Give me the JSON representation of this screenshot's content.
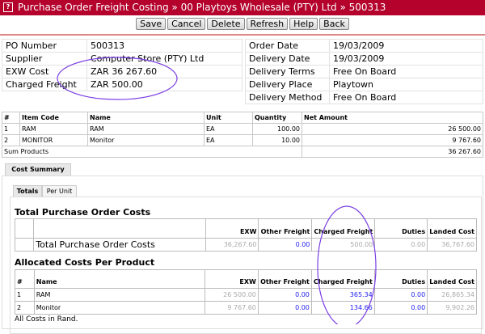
{
  "title": "Purchase Order Freight Costing » 00 Playtoys Wholesale (PTY) Ltd » 500313",
  "help_icon": "?",
  "toolbar": [
    "Save",
    "Cancel",
    "Delete",
    "Refresh",
    "Help",
    "Back"
  ],
  "info_left": [
    [
      "PO Number",
      "500313"
    ],
    [
      "Supplier",
      "Computer Store (PTY) Ltd"
    ],
    [
      "EXW Cost",
      "ZAR 36 267.60"
    ],
    [
      "Charged Freight",
      "ZAR 500.00"
    ]
  ],
  "info_right": [
    [
      "Order Date",
      "19/03/2009"
    ],
    [
      "Delivery Date",
      "19/03/2009"
    ],
    [
      "Delivery Terms",
      "Free On Board"
    ],
    [
      "Delivery Place",
      "Playtown"
    ],
    [
      "Delivery Method",
      "Free On Board"
    ]
  ],
  "items": {
    "headers": [
      "#",
      "Item Code",
      "Name",
      "Unit",
      "Quantity",
      "Net Amount"
    ],
    "rows": [
      [
        "1",
        "RAM",
        "RAM",
        "EA",
        "100.00",
        "26 500.00"
      ],
      [
        "2",
        "MONITOR",
        "Monitor",
        "EA",
        "10.00",
        "9 767.60"
      ]
    ],
    "sum_label": "Sum Products",
    "sum_value": "36 267.60"
  },
  "tabs": {
    "outer": "Cost Summary",
    "inner": [
      "Totals",
      "Per Unit"
    ]
  },
  "totals": {
    "heading": "Total Purchase Order Costs",
    "headers": [
      "EXW",
      "Other Freight",
      "Charged Freight",
      "Duties",
      "Landed Cost"
    ],
    "row": {
      "label": "Total Purchase Order Costs",
      "values": [
        "36,267.60",
        "0.00",
        "500.00",
        "0.00",
        "36,767.60"
      ]
    }
  },
  "allocated": {
    "heading": "Allocated Costs Per Product",
    "headers": [
      "#",
      "Name",
      "EXW",
      "Other Freight",
      "Charged Freight",
      "Duties",
      "Landed Cost"
    ],
    "rows": [
      [
        "1",
        "RAM",
        "26 500.00",
        "0.00",
        "365.34",
        "0.00",
        "26,865.34"
      ],
      [
        "2",
        "Monitor",
        "9 767.60",
        "0.00",
        "134.66",
        "0.00",
        "9,902.26"
      ]
    ]
  },
  "footer": "All Costs in Rand.",
  "colors": {
    "titlebar": "#b4022c",
    "link_value": "#2222ee",
    "annotation": "#7b3fe4"
  }
}
